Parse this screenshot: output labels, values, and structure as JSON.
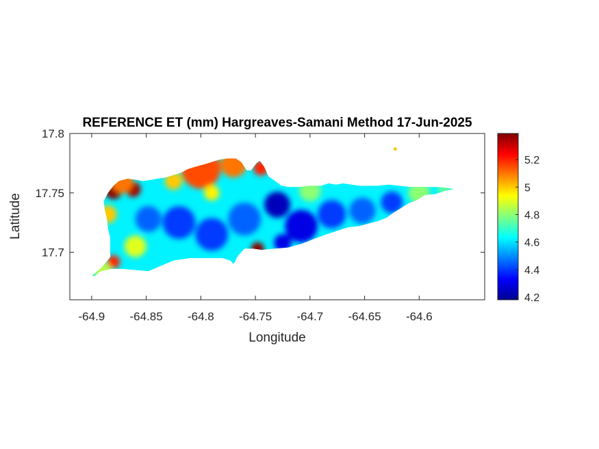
{
  "chart_data": {
    "type": "heatmap",
    "title": "REFERENCE ET (mm) Hargreaves-Samani Method  17-Jun-2025",
    "xlabel": "Longitude",
    "ylabel": "Latitude",
    "xlim": [
      -64.92,
      -64.54
    ],
    "ylim": [
      17.66,
      17.8
    ],
    "xticks": [
      -64.9,
      -64.85,
      -64.8,
      -64.75,
      -64.7,
      -64.65,
      -64.6
    ],
    "xtick_labels": [
      "-64.9",
      "-64.85",
      "-64.8",
      "-64.75",
      "-64.7",
      "-64.65",
      "-64.6"
    ],
    "yticks": [
      17.7,
      17.75,
      17.8
    ],
    "ytick_labels": [
      "17.7",
      "17.75",
      "17.8"
    ],
    "colormap": "jet",
    "colorbar": {
      "range": [
        4.18,
        5.39
      ],
      "ticks": [
        4.2,
        4.4,
        4.6,
        4.8,
        5.0,
        5.2
      ],
      "tick_labels": [
        "4.2",
        "4.4",
        "4.6",
        "4.8",
        "5",
        "5.2"
      ]
    },
    "island_outline_lonlat": [
      [
        -64.9,
        17.68
      ],
      [
        -64.89,
        17.688
      ],
      [
        -64.883,
        17.696
      ],
      [
        -64.883,
        17.705
      ],
      [
        -64.883,
        17.712
      ],
      [
        -64.885,
        17.72
      ],
      [
        -64.886,
        17.728
      ],
      [
        -64.888,
        17.736
      ],
      [
        -64.889,
        17.743
      ],
      [
        -64.885,
        17.75
      ],
      [
        -64.88,
        17.756
      ],
      [
        -64.875,
        17.76
      ],
      [
        -64.867,
        17.762
      ],
      [
        -64.859,
        17.761
      ],
      [
        -64.853,
        17.76
      ],
      [
        -64.846,
        17.761
      ],
      [
        -64.84,
        17.762
      ],
      [
        -64.832,
        17.763
      ],
      [
        -64.825,
        17.765
      ],
      [
        -64.818,
        17.767
      ],
      [
        -64.812,
        17.77
      ],
      [
        -64.805,
        17.772
      ],
      [
        -64.797,
        17.774
      ],
      [
        -64.79,
        17.776
      ],
      [
        -64.783,
        17.778
      ],
      [
        -64.776,
        17.779
      ],
      [
        -64.768,
        17.779
      ],
      [
        -64.763,
        17.776
      ],
      [
        -64.758,
        17.769
      ],
      [
        -64.754,
        17.769
      ],
      [
        -64.749,
        17.775
      ],
      [
        -64.746,
        17.777
      ],
      [
        -64.742,
        17.772
      ],
      [
        -64.738,
        17.764
      ],
      [
        -64.732,
        17.76
      ],
      [
        -64.726,
        17.756
      ],
      [
        -64.719,
        17.755
      ],
      [
        -64.71,
        17.755
      ],
      [
        -64.7,
        17.756
      ],
      [
        -64.69,
        17.756
      ],
      [
        -64.683,
        17.758
      ],
      [
        -64.676,
        17.757
      ],
      [
        -64.67,
        17.758
      ],
      [
        -64.662,
        17.757
      ],
      [
        -64.655,
        17.756
      ],
      [
        -64.646,
        17.756
      ],
      [
        -64.638,
        17.756
      ],
      [
        -64.628,
        17.757
      ],
      [
        -64.618,
        17.756
      ],
      [
        -64.608,
        17.755
      ],
      [
        -64.596,
        17.755
      ],
      [
        -64.583,
        17.755
      ],
      [
        -64.573,
        17.754
      ],
      [
        -64.568,
        17.753
      ],
      [
        -64.575,
        17.752
      ],
      [
        -64.585,
        17.749
      ],
      [
        -64.595,
        17.748
      ],
      [
        -64.602,
        17.744
      ],
      [
        -64.61,
        17.741
      ],
      [
        -64.617,
        17.737
      ],
      [
        -64.624,
        17.733
      ],
      [
        -64.63,
        17.729
      ],
      [
        -64.638,
        17.726
      ],
      [
        -64.647,
        17.724
      ],
      [
        -64.655,
        17.722
      ],
      [
        -64.665,
        17.721
      ],
      [
        -64.675,
        17.718
      ],
      [
        -64.685,
        17.715
      ],
      [
        -64.697,
        17.711
      ],
      [
        -64.708,
        17.707
      ],
      [
        -64.72,
        17.704
      ],
      [
        -64.733,
        17.703
      ],
      [
        -64.744,
        17.702
      ],
      [
        -64.752,
        17.703
      ],
      [
        -64.76,
        17.703
      ],
      [
        -64.766,
        17.697
      ],
      [
        -64.77,
        17.69
      ],
      [
        -64.773,
        17.693
      ],
      [
        -64.78,
        17.695
      ],
      [
        -64.795,
        17.695
      ],
      [
        -64.81,
        17.695
      ],
      [
        -64.825,
        17.693
      ],
      [
        -64.838,
        17.688
      ],
      [
        -64.848,
        17.684
      ],
      [
        -64.86,
        17.685
      ],
      [
        -64.872,
        17.686
      ],
      [
        -64.882,
        17.686
      ],
      [
        -64.892,
        17.684
      ],
      [
        -64.897,
        17.68
      ]
    ],
    "islet_lonlat": [
      -64.622,
      17.787
    ],
    "field_anomalies": [
      {
        "lon": -64.88,
        "lat": 17.752,
        "value": 5.38,
        "radius_deg": 0.008
      },
      {
        "lon": -64.862,
        "lat": 17.753,
        "value": 5.35,
        "radius_deg": 0.007
      },
      {
        "lon": -64.872,
        "lat": 17.759,
        "value": 5.1,
        "radius_deg": 0.01
      },
      {
        "lon": -64.8,
        "lat": 17.77,
        "value": 5.15,
        "radius_deg": 0.018
      },
      {
        "lon": -64.77,
        "lat": 17.774,
        "value": 5.1,
        "radius_deg": 0.012
      },
      {
        "lon": -64.745,
        "lat": 17.771,
        "value": 5.2,
        "radius_deg": 0.007
      },
      {
        "lon": -64.748,
        "lat": 17.703,
        "value": 5.38,
        "radius_deg": 0.006
      },
      {
        "lon": -64.88,
        "lat": 17.692,
        "value": 5.2,
        "radius_deg": 0.006
      },
      {
        "lon": -64.885,
        "lat": 17.732,
        "value": 5.0,
        "radius_deg": 0.008
      },
      {
        "lon": -64.825,
        "lat": 17.76,
        "value": 5.0,
        "radius_deg": 0.008
      },
      {
        "lon": -64.79,
        "lat": 17.75,
        "value": 4.95,
        "radius_deg": 0.007
      },
      {
        "lon": -64.82,
        "lat": 17.725,
        "value": 4.4,
        "radius_deg": 0.015
      },
      {
        "lon": -64.848,
        "lat": 17.728,
        "value": 4.45,
        "radius_deg": 0.012
      },
      {
        "lon": -64.79,
        "lat": 17.715,
        "value": 4.4,
        "radius_deg": 0.015
      },
      {
        "lon": -64.76,
        "lat": 17.728,
        "value": 4.45,
        "radius_deg": 0.015
      },
      {
        "lon": -64.73,
        "lat": 17.74,
        "value": 4.25,
        "radius_deg": 0.012
      },
      {
        "lon": -64.708,
        "lat": 17.722,
        "value": 4.3,
        "radius_deg": 0.015
      },
      {
        "lon": -64.68,
        "lat": 17.732,
        "value": 4.4,
        "radius_deg": 0.013
      },
      {
        "lon": -64.652,
        "lat": 17.735,
        "value": 4.45,
        "radius_deg": 0.012
      },
      {
        "lon": -64.625,
        "lat": 17.742,
        "value": 4.4,
        "radius_deg": 0.01
      },
      {
        "lon": -64.725,
        "lat": 17.708,
        "value": 4.3,
        "radius_deg": 0.008
      },
      {
        "lon": -64.86,
        "lat": 17.705,
        "value": 4.9,
        "radius_deg": 0.01
      },
      {
        "lon": -64.89,
        "lat": 17.684,
        "value": 4.85,
        "radius_deg": 0.008
      },
      {
        "lon": -64.7,
        "lat": 17.752,
        "value": 4.8,
        "radius_deg": 0.01
      },
      {
        "lon": -64.6,
        "lat": 17.75,
        "value": 4.8,
        "radius_deg": 0.01
      },
      {
        "lon": -64.577,
        "lat": 17.753,
        "value": 4.75,
        "radius_deg": 0.006
      }
    ],
    "background_value": 4.62
  }
}
